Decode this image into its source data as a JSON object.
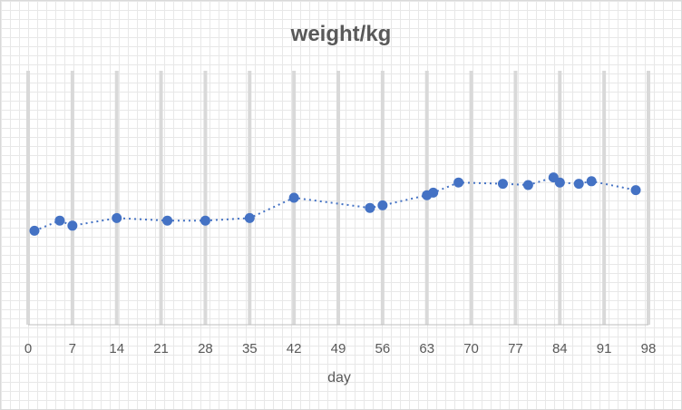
{
  "chart_data": {
    "type": "scatter",
    "title": "weight/kg",
    "xlabel": "day",
    "ylabel": "",
    "xlim": [
      0,
      98
    ],
    "ylim": [
      0,
      10
    ],
    "x_ticks": [
      0,
      7,
      14,
      21,
      28,
      35,
      42,
      49,
      56,
      63,
      70,
      77,
      84,
      91,
      98
    ],
    "x_tick_labels": [
      "0",
      "7",
      "14",
      "21",
      "28",
      "35",
      "42",
      "49",
      "56",
      "63",
      "70",
      "77",
      "84",
      "91",
      "98"
    ],
    "gridlines": "vertical",
    "legend": "none",
    "marker_color": "#4472C4",
    "line_style": "dotted",
    "series": [
      {
        "x": [
          1,
          5,
          7,
          14,
          22,
          28,
          35,
          42,
          54,
          56,
          63,
          64,
          68,
          75,
          79,
          83,
          84,
          87,
          89,
          96
        ],
        "y": [
          3.7,
          4.1,
          3.9,
          4.2,
          4.1,
          4.1,
          4.2,
          5.0,
          4.6,
          4.7,
          5.1,
          5.2,
          5.6,
          5.55,
          5.5,
          5.8,
          5.6,
          5.55,
          5.65,
          5.3
        ]
      }
    ]
  }
}
